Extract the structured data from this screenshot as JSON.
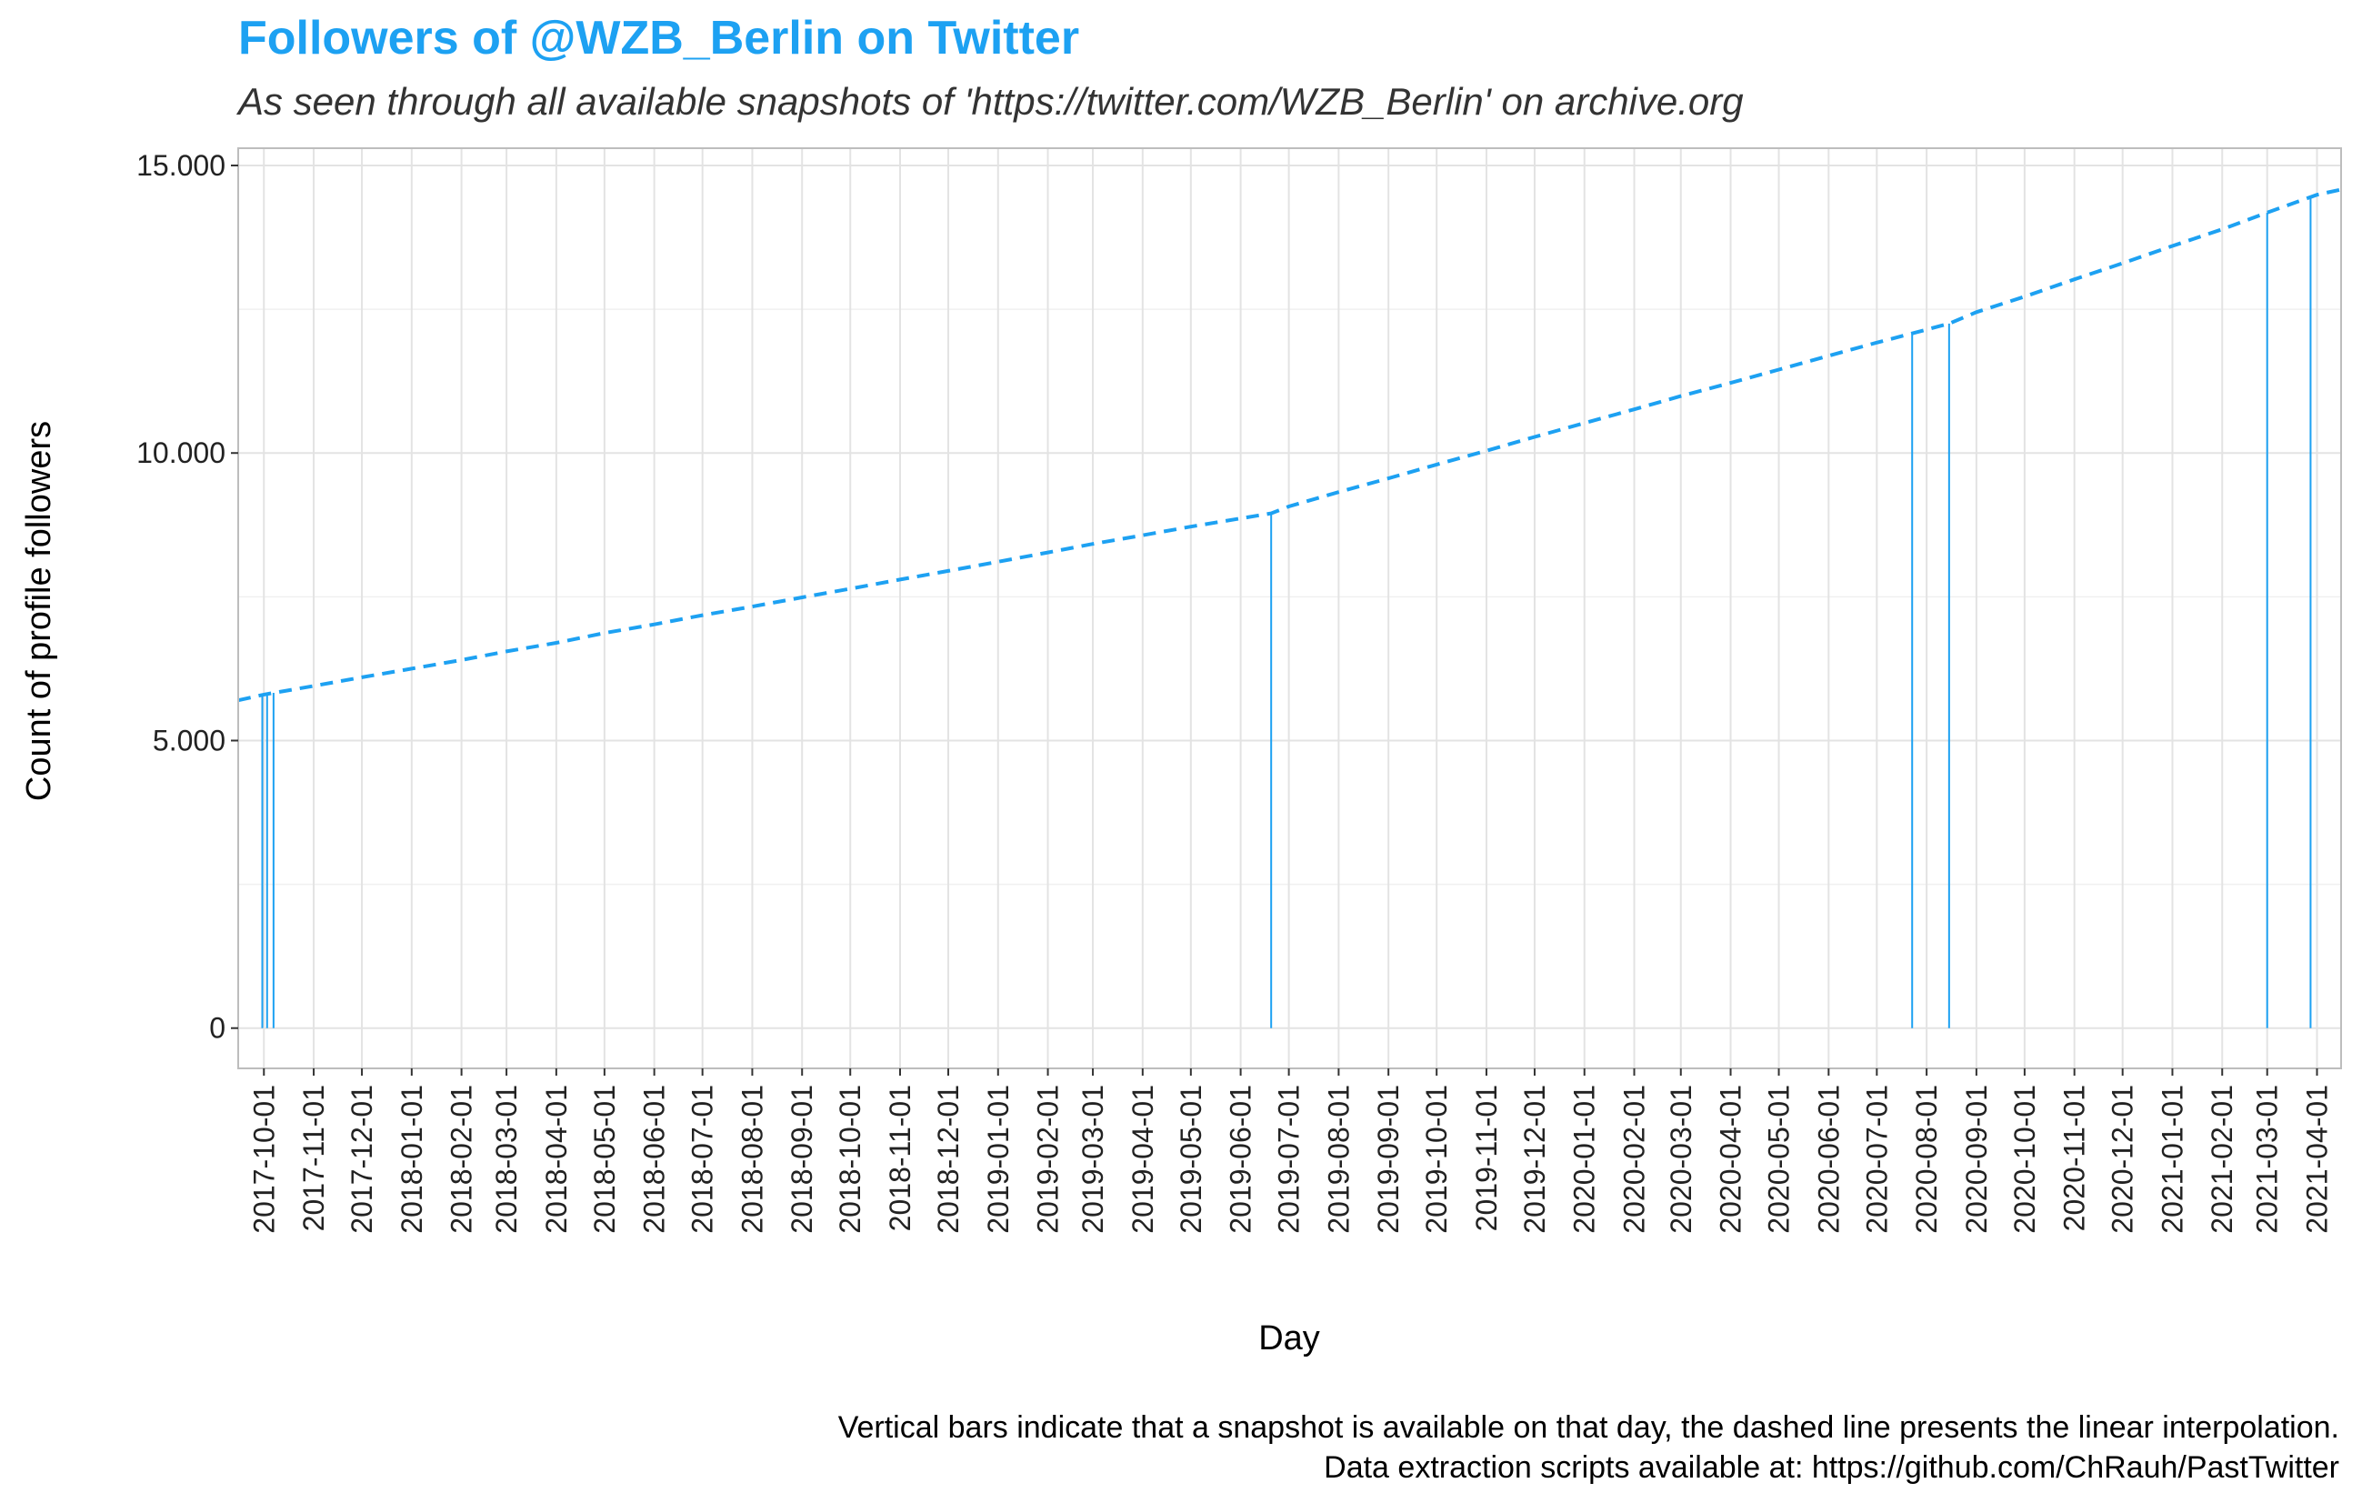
{
  "chart_data": {
    "type": "line",
    "title": "Followers of @WZB_Berlin on Twitter",
    "subtitle": "As seen through all available snapshots of 'https://twitter.com/WZB_Berlin' on archive.org",
    "xlabel": "Day",
    "ylabel": "Count of profile followers",
    "ylim": [
      -700,
      15300
    ],
    "xlim": [
      "2017-09-15",
      "2021-04-16"
    ],
    "y_ticks": [
      0,
      5000,
      10000,
      15000
    ],
    "y_tick_labels": [
      "0",
      "5.000",
      "10.000",
      "15.000"
    ],
    "x_tick_labels": [
      "2017-10-01",
      "2017-11-01",
      "2017-12-01",
      "2018-01-01",
      "2018-02-01",
      "2018-03-01",
      "2018-04-01",
      "2018-05-01",
      "2018-06-01",
      "2018-07-01",
      "2018-08-01",
      "2018-09-01",
      "2018-10-01",
      "2018-11-01",
      "2018-12-01",
      "2019-01-01",
      "2019-02-01",
      "2019-03-01",
      "2019-04-01",
      "2019-05-01",
      "2019-06-01",
      "2019-07-01",
      "2019-08-01",
      "2019-09-01",
      "2019-10-01",
      "2019-11-01",
      "2019-12-01",
      "2020-01-01",
      "2020-02-01",
      "2020-03-01",
      "2020-04-01",
      "2020-05-01",
      "2020-06-01",
      "2020-07-01",
      "2020-08-01",
      "2020-09-01",
      "2020-10-01",
      "2020-11-01",
      "2020-12-01",
      "2021-01-01",
      "2021-02-01",
      "2021-03-01",
      "2021-04-01"
    ],
    "grid": true,
    "legend": "none",
    "series": [
      {
        "style": "dashed line",
        "color": "#1DA1F2",
        "points": [
          [
            "2017-09-15",
            5700
          ],
          [
            "2017-10-01",
            5800
          ],
          [
            "2017-11-01",
            5950
          ],
          [
            "2017-12-01",
            6100
          ],
          [
            "2018-01-01",
            6250
          ],
          [
            "2018-02-01",
            6400
          ],
          [
            "2018-03-01",
            6550
          ],
          [
            "2018-04-01",
            6700
          ],
          [
            "2018-05-01",
            6870
          ],
          [
            "2018-06-01",
            7020
          ],
          [
            "2018-07-01",
            7180
          ],
          [
            "2018-08-01",
            7330
          ],
          [
            "2018-09-01",
            7490
          ],
          [
            "2018-10-01",
            7640
          ],
          [
            "2018-11-01",
            7800
          ],
          [
            "2018-12-01",
            7950
          ],
          [
            "2019-01-01",
            8110
          ],
          [
            "2019-02-01",
            8270
          ],
          [
            "2019-03-01",
            8420
          ],
          [
            "2019-04-01",
            8570
          ],
          [
            "2019-05-01",
            8720
          ],
          [
            "2019-06-20",
            8950
          ],
          [
            "2019-07-01",
            9070
          ],
          [
            "2019-08-01",
            9320
          ],
          [
            "2019-09-01",
            9560
          ],
          [
            "2019-10-01",
            9800
          ],
          [
            "2019-11-01",
            10040
          ],
          [
            "2019-12-01",
            10280
          ],
          [
            "2020-01-01",
            10520
          ],
          [
            "2020-02-01",
            10760
          ],
          [
            "2020-03-01",
            10990
          ],
          [
            "2020-04-01",
            11220
          ],
          [
            "2020-05-01",
            11450
          ],
          [
            "2020-06-01",
            11690
          ],
          [
            "2020-07-01",
            11920
          ],
          [
            "2020-07-23",
            12080
          ],
          [
            "2020-08-15",
            12250
          ],
          [
            "2020-09-01",
            12450
          ],
          [
            "2020-10-01",
            12720
          ],
          [
            "2020-11-01",
            13020
          ],
          [
            "2020-12-01",
            13300
          ],
          [
            "2021-01-01",
            13600
          ],
          [
            "2021-02-01",
            13890
          ],
          [
            "2021-03-01",
            14180
          ],
          [
            "2021-04-01",
            14490
          ],
          [
            "2021-04-16",
            14580
          ]
        ]
      },
      {
        "style": "vertical bars (snapshot available)",
        "color": "#1DA1F2",
        "points": [
          [
            "2017-09-30",
            5790
          ],
          [
            "2017-10-03",
            5800
          ],
          [
            "2017-10-07",
            5830
          ],
          [
            "2019-06-20",
            8950
          ],
          [
            "2020-07-23",
            12080
          ],
          [
            "2020-08-15",
            12250
          ],
          [
            "2021-03-01",
            14180
          ],
          [
            "2021-03-28",
            14450
          ]
        ]
      }
    ]
  },
  "caption": {
    "line1": "Vertical bars indicate that a snapshot is available on that day, the dashed line presents the linear interpolation.",
    "line2": "Data extraction scripts available at: https://github.com/ChRauh/PastTwitter"
  },
  "colors": {
    "accent": "#1DA1F2",
    "grid": "#e3e3e3",
    "panel_border": "#bdbdbd"
  }
}
